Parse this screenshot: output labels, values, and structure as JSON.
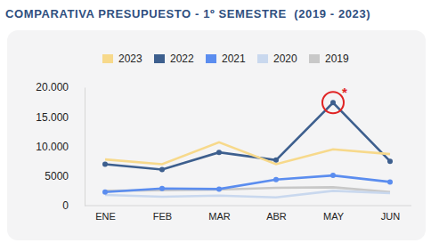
{
  "chart_data": {
    "type": "line",
    "title": "COMPARATIVA PRESUPUESTO - 1º SEMESTRE  (2019 - 2023)",
    "categories": [
      "ENE",
      "FEB",
      "MAR",
      "ABR",
      "MAY",
      "JUN"
    ],
    "series": [
      {
        "name": "2023",
        "color": "#f7d98b",
        "marker": "none",
        "values": [
          7800,
          7000,
          10700,
          7000,
          9500,
          8700
        ]
      },
      {
        "name": "2022",
        "color": "#3d5f8e",
        "marker": "circle",
        "values": [
          7000,
          6100,
          9000,
          7700,
          17400,
          7500
        ]
      },
      {
        "name": "2021",
        "color": "#5b8def",
        "marker": "circle",
        "values": [
          2300,
          2900,
          2800,
          4400,
          5100,
          4000
        ]
      },
      {
        "name": "2020",
        "color": "#c9d8ee",
        "marker": "none",
        "values": [
          1800,
          1500,
          1700,
          1400,
          2500,
          2100
        ]
      },
      {
        "name": "2019",
        "color": "#c8c8c8",
        "marker": "none",
        "values": [
          2500,
          2600,
          2700,
          3000,
          3100,
          2300
        ]
      }
    ],
    "ylim": [
      0,
      20000
    ],
    "yticks": [
      0,
      5000,
      {
        "value": 10000,
        "label": "10.000"
      },
      {
        "value": 15000,
        "label": "15.000"
      },
      {
        "value": 20000,
        "label": "20.000"
      }
    ],
    "grid": false,
    "legend": "top",
    "annotations": [
      {
        "text": "*",
        "category": "MAY",
        "series": "2022",
        "color": "#e02424"
      }
    ]
  }
}
